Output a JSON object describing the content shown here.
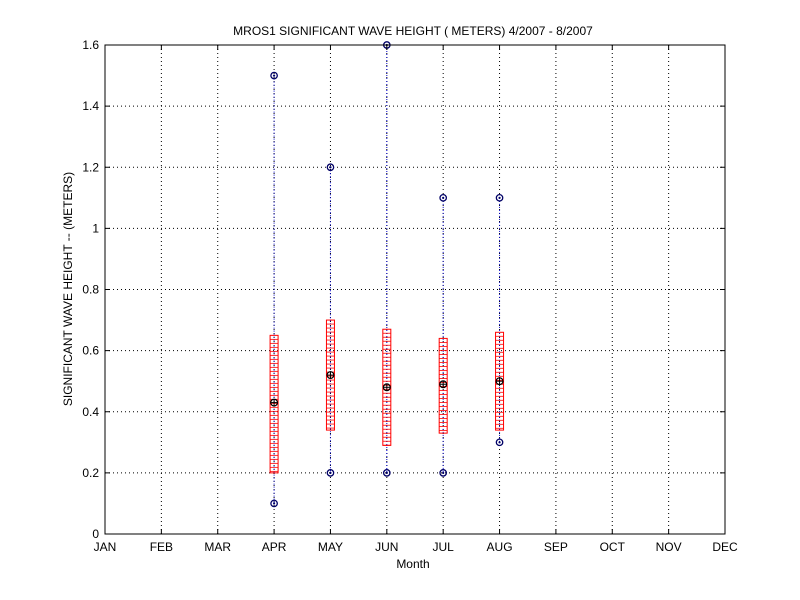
{
  "chart_data": {
    "type": "boxplot",
    "title": "MROS1  SIGNIFICANT WAVE HEIGHT ( METERS) 4/2007 - 8/2007",
    "xlabel": "Month",
    "ylabel": "SIGNIFICANT WAVE HEIGHT -- (METERS)",
    "categories": [
      "JAN",
      "FEB",
      "MAR",
      "APR",
      "MAY",
      "JUN",
      "JUL",
      "AUG",
      "SEP",
      "OCT",
      "NOV",
      "DEC"
    ],
    "ylim": [
      0,
      1.6
    ],
    "yticks": [
      "0",
      "0.2",
      "0.4",
      "0.6",
      "0.8",
      "1",
      "1.2",
      "1.4",
      "1.6"
    ],
    "grid": true,
    "series": [
      {
        "month": "APR",
        "min": 0.1,
        "max": 1.5,
        "mean": 0.43,
        "box_low": 0.2,
        "box_high": 0.65
      },
      {
        "month": "MAY",
        "min": 0.2,
        "max": 1.2,
        "mean": 0.52,
        "box_low": 0.34,
        "box_high": 0.7
      },
      {
        "month": "JUN",
        "min": 0.2,
        "max": 1.6,
        "mean": 0.48,
        "box_low": 0.29,
        "box_high": 0.67
      },
      {
        "month": "JUL",
        "min": 0.2,
        "max": 1.1,
        "mean": 0.49,
        "box_low": 0.33,
        "box_high": 0.64
      },
      {
        "month": "AUG",
        "min": 0.3,
        "max": 1.1,
        "mean": 0.5,
        "box_low": 0.34,
        "box_high": 0.66
      }
    ],
    "colors": {
      "range_line": "#0000cc",
      "box": "#ff0000",
      "marker": "#000066",
      "grid": "#000000"
    }
  }
}
